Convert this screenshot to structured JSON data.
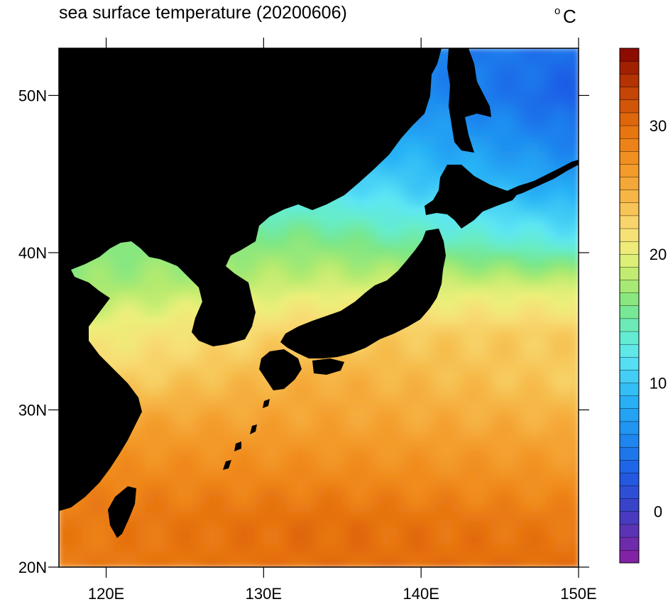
{
  "title": "sea surface temperature (20200606)",
  "unit": {
    "degree": "o",
    "letter": "C"
  },
  "map": {
    "lon_range": [
      117,
      150
    ],
    "lat_range": [
      20,
      53
    ],
    "x_ticks": [
      {
        "lon": 120,
        "label": "120E"
      },
      {
        "lon": 130,
        "label": "130E"
      },
      {
        "lon": 140,
        "label": "140E"
      },
      {
        "lon": 150,
        "label": "150E"
      }
    ],
    "y_ticks": [
      {
        "lat": 20,
        "label": "20N"
      },
      {
        "lat": 30,
        "label": "30N"
      },
      {
        "lat": 40,
        "label": "40N"
      },
      {
        "lat": 50,
        "label": "50N"
      }
    ],
    "land_color": "#000000"
  },
  "colorbar": {
    "min": -4,
    "max": 36,
    "step": 1,
    "ticks": [
      {
        "value": 0,
        "label": "0"
      },
      {
        "value": 10,
        "label": "10"
      },
      {
        "value": 20,
        "label": "20"
      },
      {
        "value": 30,
        "label": "30"
      }
    ],
    "stops": [
      {
        "value": -4,
        "color": "#8a1ea0"
      },
      {
        "value": -2,
        "color": "#6430b0"
      },
      {
        "value": 0,
        "color": "#3e3ec4"
      },
      {
        "value": 3,
        "color": "#1e5ee6"
      },
      {
        "value": 6,
        "color": "#1e8ef0"
      },
      {
        "value": 9,
        "color": "#2ab6f6"
      },
      {
        "value": 12,
        "color": "#5ee6f4"
      },
      {
        "value": 14,
        "color": "#66ecc8"
      },
      {
        "value": 16,
        "color": "#7ce684"
      },
      {
        "value": 18,
        "color": "#b4ea6e"
      },
      {
        "value": 20,
        "color": "#ecf07a"
      },
      {
        "value": 22,
        "color": "#f8dc74"
      },
      {
        "value": 24,
        "color": "#f6bc4c"
      },
      {
        "value": 26,
        "color": "#f4a030"
      },
      {
        "value": 28,
        "color": "#f08a1c"
      },
      {
        "value": 30,
        "color": "#e46e0c"
      },
      {
        "value": 32,
        "color": "#cc4e06"
      },
      {
        "value": 34,
        "color": "#aa2a00"
      },
      {
        "value": 36,
        "color": "#840000"
      }
    ]
  },
  "sst_field": {
    "description_lat_values": [
      20,
      23,
      26,
      29,
      32,
      35,
      38,
      41,
      44,
      47,
      50,
      53
    ],
    "zonal_profile": [
      {
        "lat": 20,
        "west": 29,
        "mid": 30,
        "east": 30
      },
      {
        "lat": 23,
        "west": 29,
        "mid": 30,
        "east": 29
      },
      {
        "lat": 26,
        "west": 28,
        "mid": 28,
        "east": 27
      },
      {
        "lat": 29,
        "west": 26,
        "mid": 26,
        "east": 25
      },
      {
        "lat": 32,
        "west": 22,
        "mid": 25,
        "east": 23
      },
      {
        "lat": 35,
        "west": 20,
        "mid": 23,
        "east": 23
      },
      {
        "lat": 38,
        "west": 17,
        "mid": 19,
        "east": 19
      },
      {
        "lat": 41,
        "west": 16,
        "mid": 16,
        "east": 12
      },
      {
        "lat": 44,
        "west": 14,
        "mid": 12,
        "east": 8
      },
      {
        "lat": 47,
        "west": 12,
        "mid": 10,
        "east": 5
      },
      {
        "lat": 50,
        "west": 10,
        "mid": 8,
        "east": 3
      },
      {
        "lat": 53,
        "west": 8,
        "mid": 6,
        "east": 4
      }
    ]
  }
}
